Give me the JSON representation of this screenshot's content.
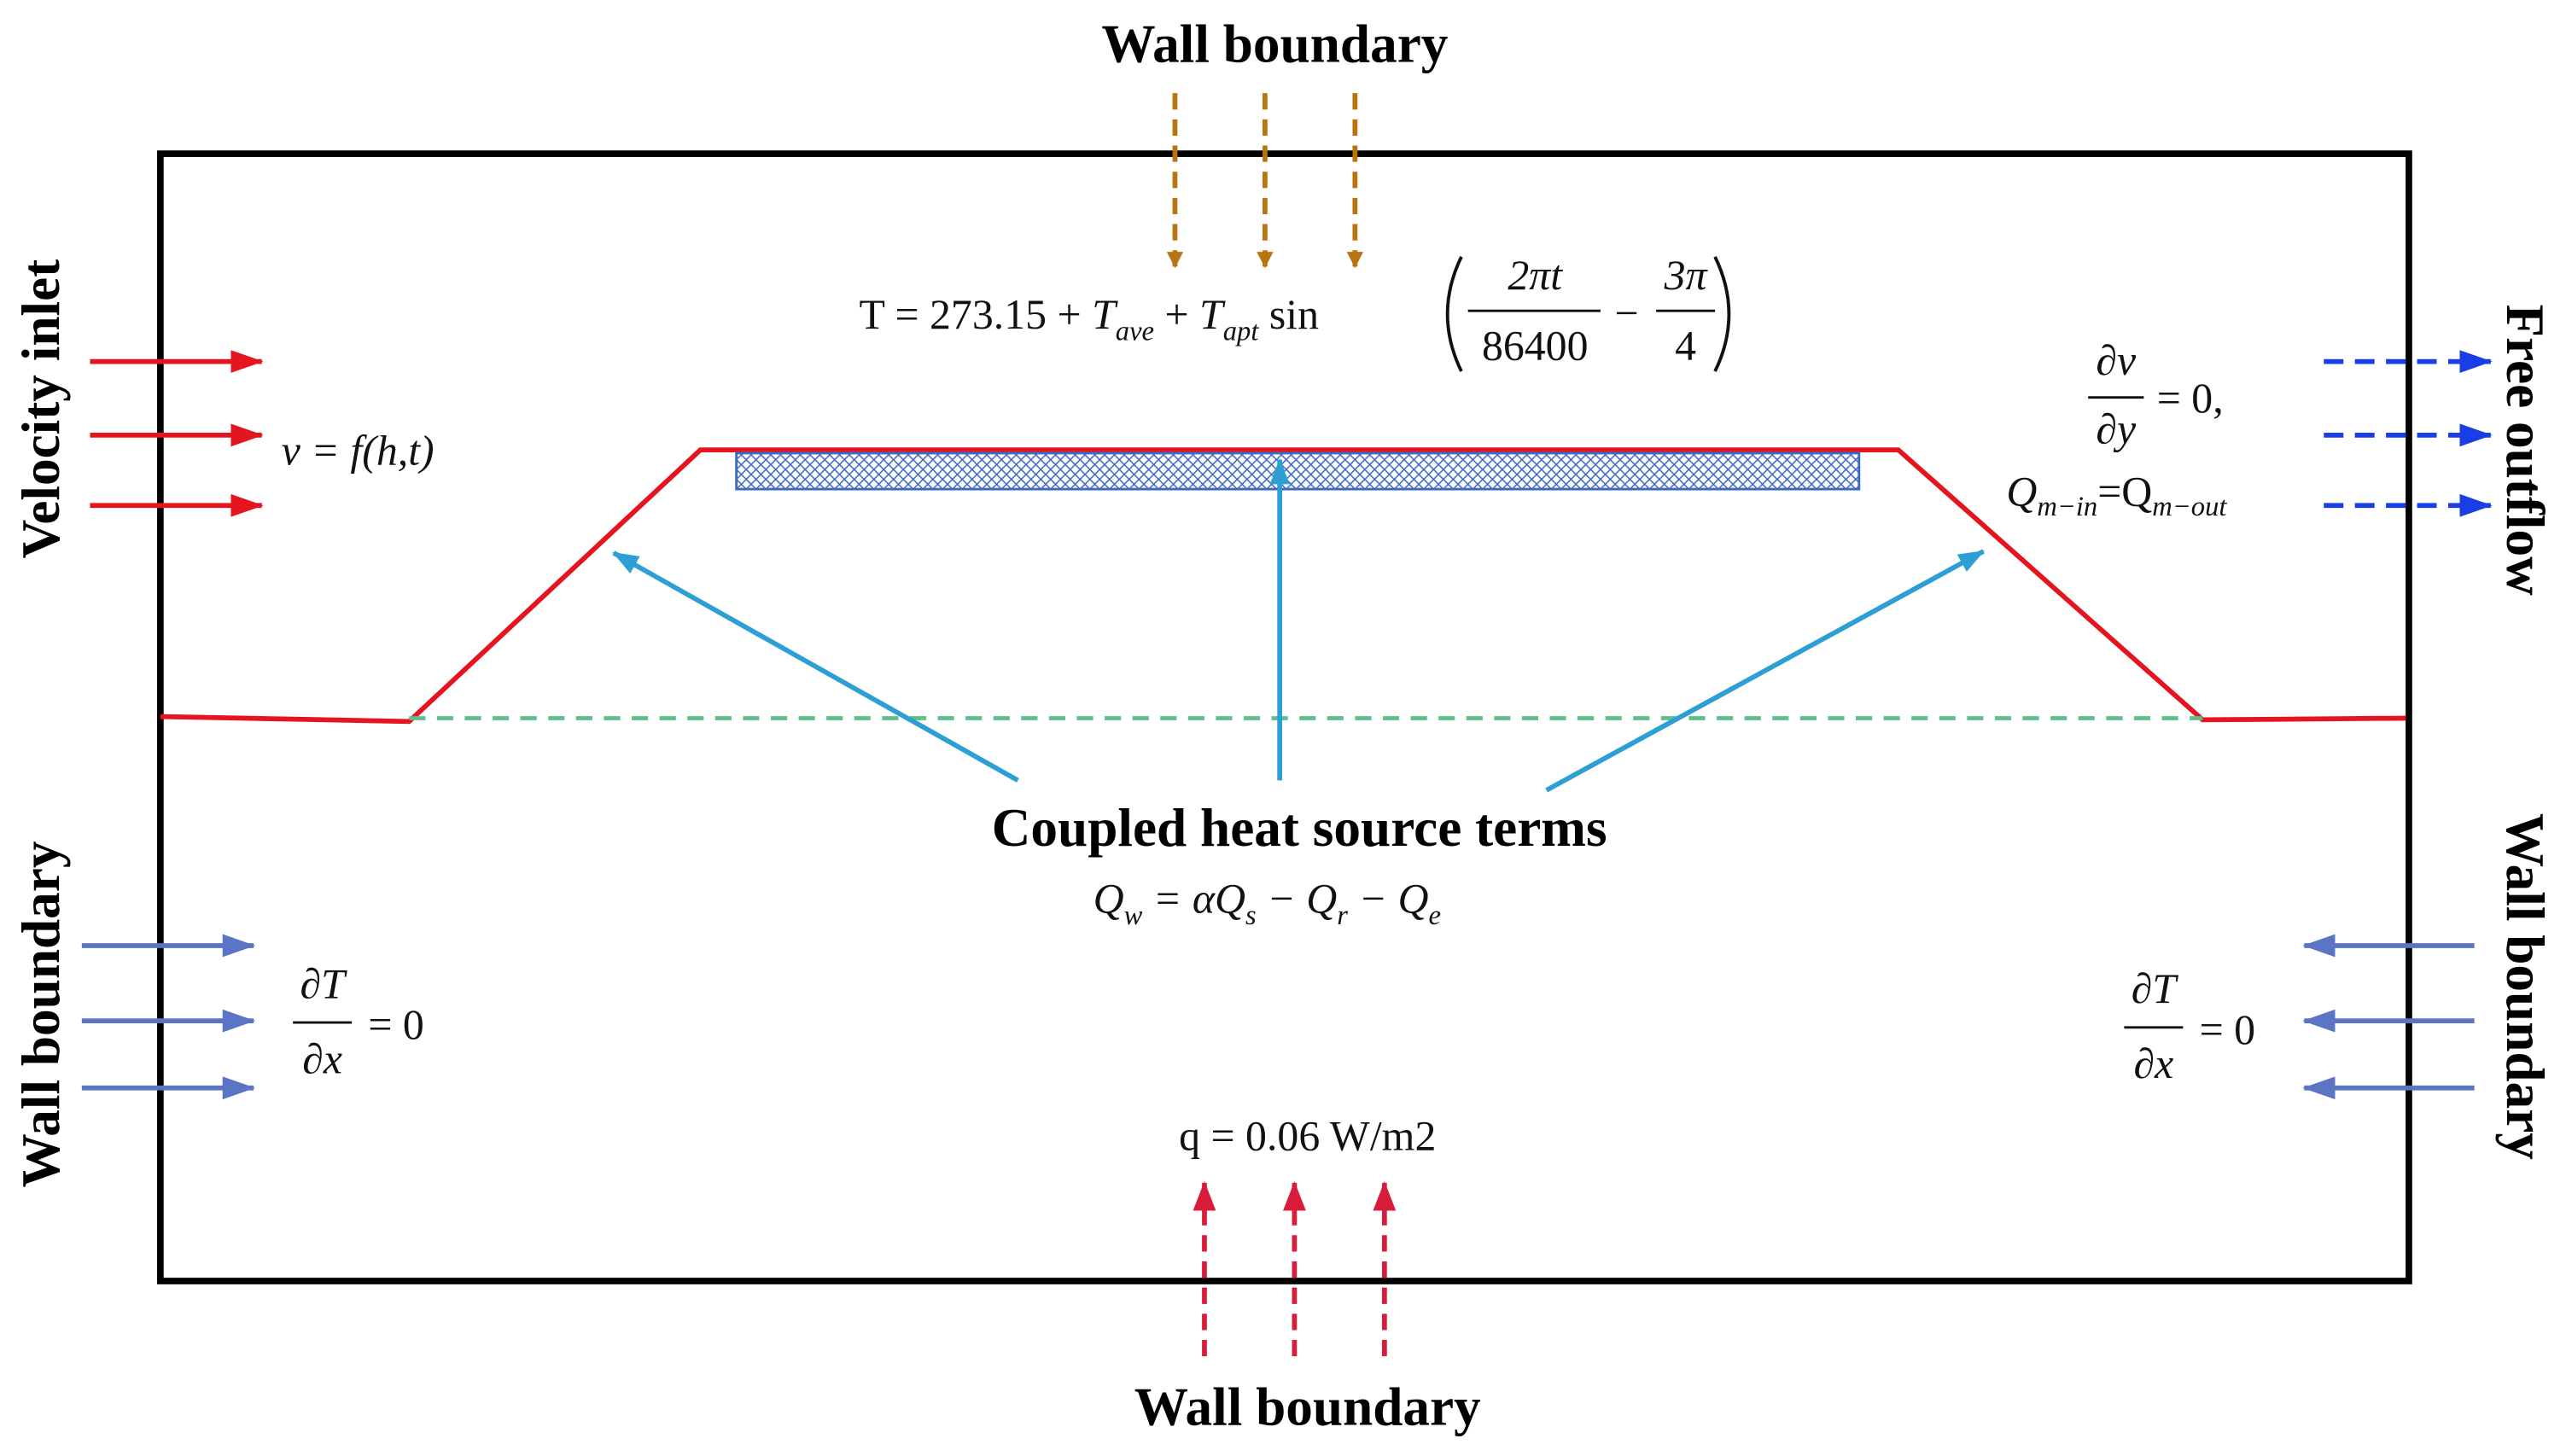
{
  "labels": {
    "top": "Wall boundary",
    "bottom": "Wall boundary",
    "inlet": "Velocity inlet",
    "outflow": "Free outflow",
    "left_wall": "Wall boundary",
    "right_wall": "Wall boundary",
    "heat": "Coupled heat source terms"
  },
  "top_equation": {
    "lhs": "T = 273.15 + ",
    "t1": "T",
    "s1": "ave",
    "plus": " + ",
    "t2": "T",
    "s2": "apt",
    "sin": " sin",
    "num1": "2πt",
    "den1": "86400",
    "minus": "−",
    "num2": "3π",
    "den2": "4"
  },
  "inlet_equation": "v = f(h,t)",
  "outflow_equation": {
    "num": "∂v",
    "den": "∂y",
    "rest": "= 0,",
    "q1": "Q",
    "sub1": "m−in",
    "eq": "=Q",
    "sub2": "m−out"
  },
  "heat_equation": {
    "q": "Q",
    "w": "w",
    "a": " = αQ",
    "s": "s",
    "b": " − Q",
    "r": "r",
    "c": " − Q",
    "e": "e"
  },
  "left_gradient": {
    "num": "∂T",
    "den": "∂x",
    "rest": "= 0"
  },
  "right_gradient": {
    "num": "∂T",
    "den": "∂x",
    "rest": "= 0"
  },
  "bottom_equation": "q = 0.06 W/m2"
}
